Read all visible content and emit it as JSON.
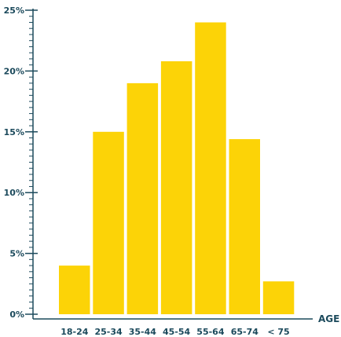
{
  "chart_data": {
    "type": "bar",
    "categories": [
      "18-24",
      "25-34",
      "35-44",
      "45-54",
      "55-64",
      "65-74",
      "< 75"
    ],
    "values": [
      4.0,
      15.0,
      19.0,
      20.8,
      24.0,
      14.4,
      2.7
    ],
    "title": "",
    "xlabel": "AGE",
    "ylabel": "",
    "ylim": [
      0,
      25
    ],
    "yticks": [
      "0%",
      "5%",
      "10%",
      "15%",
      "20%",
      "25%"
    ],
    "ytick_values": [
      0,
      5,
      10,
      15,
      20,
      25
    ],
    "minor_tick_step": 0.5,
    "grid": false,
    "legend": "none",
    "colors": {
      "bar": "#fcd307",
      "axis": "#1c4a5c"
    }
  }
}
